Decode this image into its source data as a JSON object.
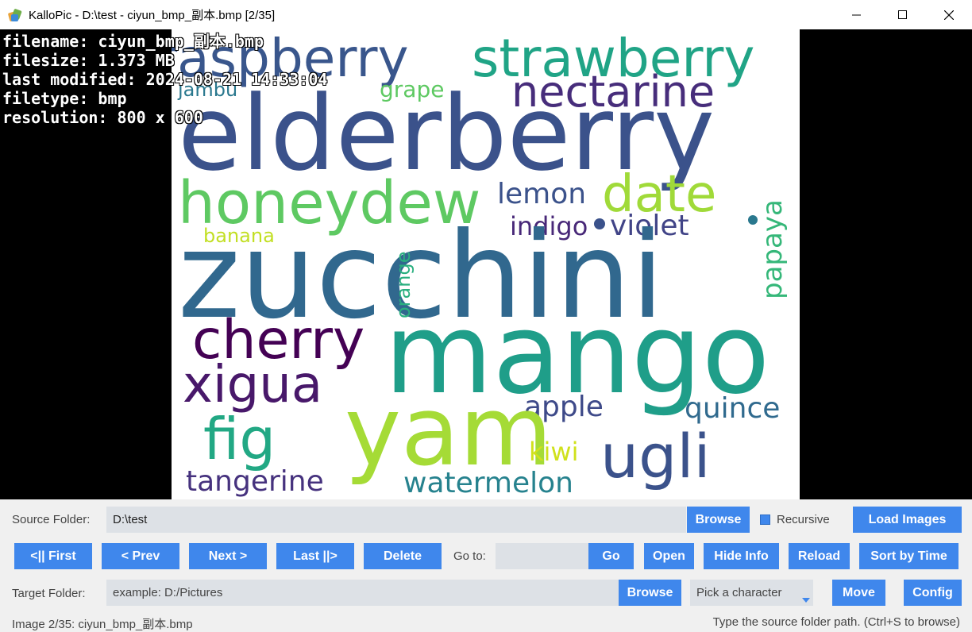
{
  "window": {
    "title": "KalloPic - D:\\test - ciyun_bmp_副本.bmp [2/35]"
  },
  "image_info": {
    "filename": "filename: ciyun_bmp_副本.bmp",
    "filesize": "filesize: 1.373 MB",
    "modified": "last modified: 2024-08-21 14:33:04",
    "filetype": "filetype: bmp",
    "resolution": "resolution: 800 x 600"
  },
  "wordcloud": [
    {
      "text": "raspberry",
      "color": "#39568c"
    },
    {
      "text": "strawberry",
      "color": "#20a486"
    },
    {
      "text": "elderberry",
      "color": "#3b528b"
    },
    {
      "text": "nectarine",
      "color": "#472d7b"
    },
    {
      "text": "jambu",
      "color": "#2a788e"
    },
    {
      "text": "grape",
      "color": "#5ec962"
    },
    {
      "text": "honeydew",
      "color": "#5ec962"
    },
    {
      "text": "date",
      "color": "#a0da39"
    },
    {
      "text": "lemon",
      "color": "#3b528b"
    },
    {
      "text": "indigo",
      "color": "#482878"
    },
    {
      "text": "violet",
      "color": "#414487"
    },
    {
      "text": "banana",
      "color": "#c2df23"
    },
    {
      "text": "papaya",
      "color": "#35b779"
    },
    {
      "text": "zucchini",
      "color": "#31688e"
    },
    {
      "text": "orange",
      "color": "#29af7f"
    },
    {
      "text": "cherry",
      "color": "#440154"
    },
    {
      "text": "mango",
      "color": "#1f9e89"
    },
    {
      "text": "xigua",
      "color": "#48186a"
    },
    {
      "text": "apple",
      "color": "#3e4a89"
    },
    {
      "text": "quince",
      "color": "#306a8e"
    },
    {
      "text": "fig",
      "color": "#22a884"
    },
    {
      "text": "yam",
      "color": "#a5db36"
    },
    {
      "text": "ugli",
      "color": "#3b528b"
    },
    {
      "text": "kiwi",
      "color": "#d0e11c"
    },
    {
      "text": "tangerine",
      "color": "#46327e"
    },
    {
      "text": "watermelon",
      "color": "#26828e"
    }
  ],
  "source": {
    "label": "Source Folder:",
    "value": "D:\\test",
    "browse": "Browse",
    "recursive": "Recursive",
    "load": "Load Images"
  },
  "nav": {
    "first": "<|| First",
    "prev": "< Prev",
    "next": "Next >",
    "last": "Last ||>",
    "delete": "Delete",
    "goto_label": "Go to:",
    "goto_value": "",
    "go": "Go",
    "open": "Open",
    "hide_info": "Hide Info",
    "reload": "Reload",
    "sort": "Sort by Time"
  },
  "target": {
    "label": "Target Folder:",
    "placeholder": "example: D:/Pictures",
    "browse": "Browse",
    "character": "Pick a character",
    "move": "Move",
    "config": "Config"
  },
  "status": {
    "left": "Image 2/35: ciyun_bmp_副本.bmp",
    "right": "Type the source folder path. (Ctrl+S to browse)"
  },
  "colors": {
    "accent": "#3f87ec",
    "panel_bg": "#f0f0f0",
    "field_bg": "#dde1e6"
  }
}
